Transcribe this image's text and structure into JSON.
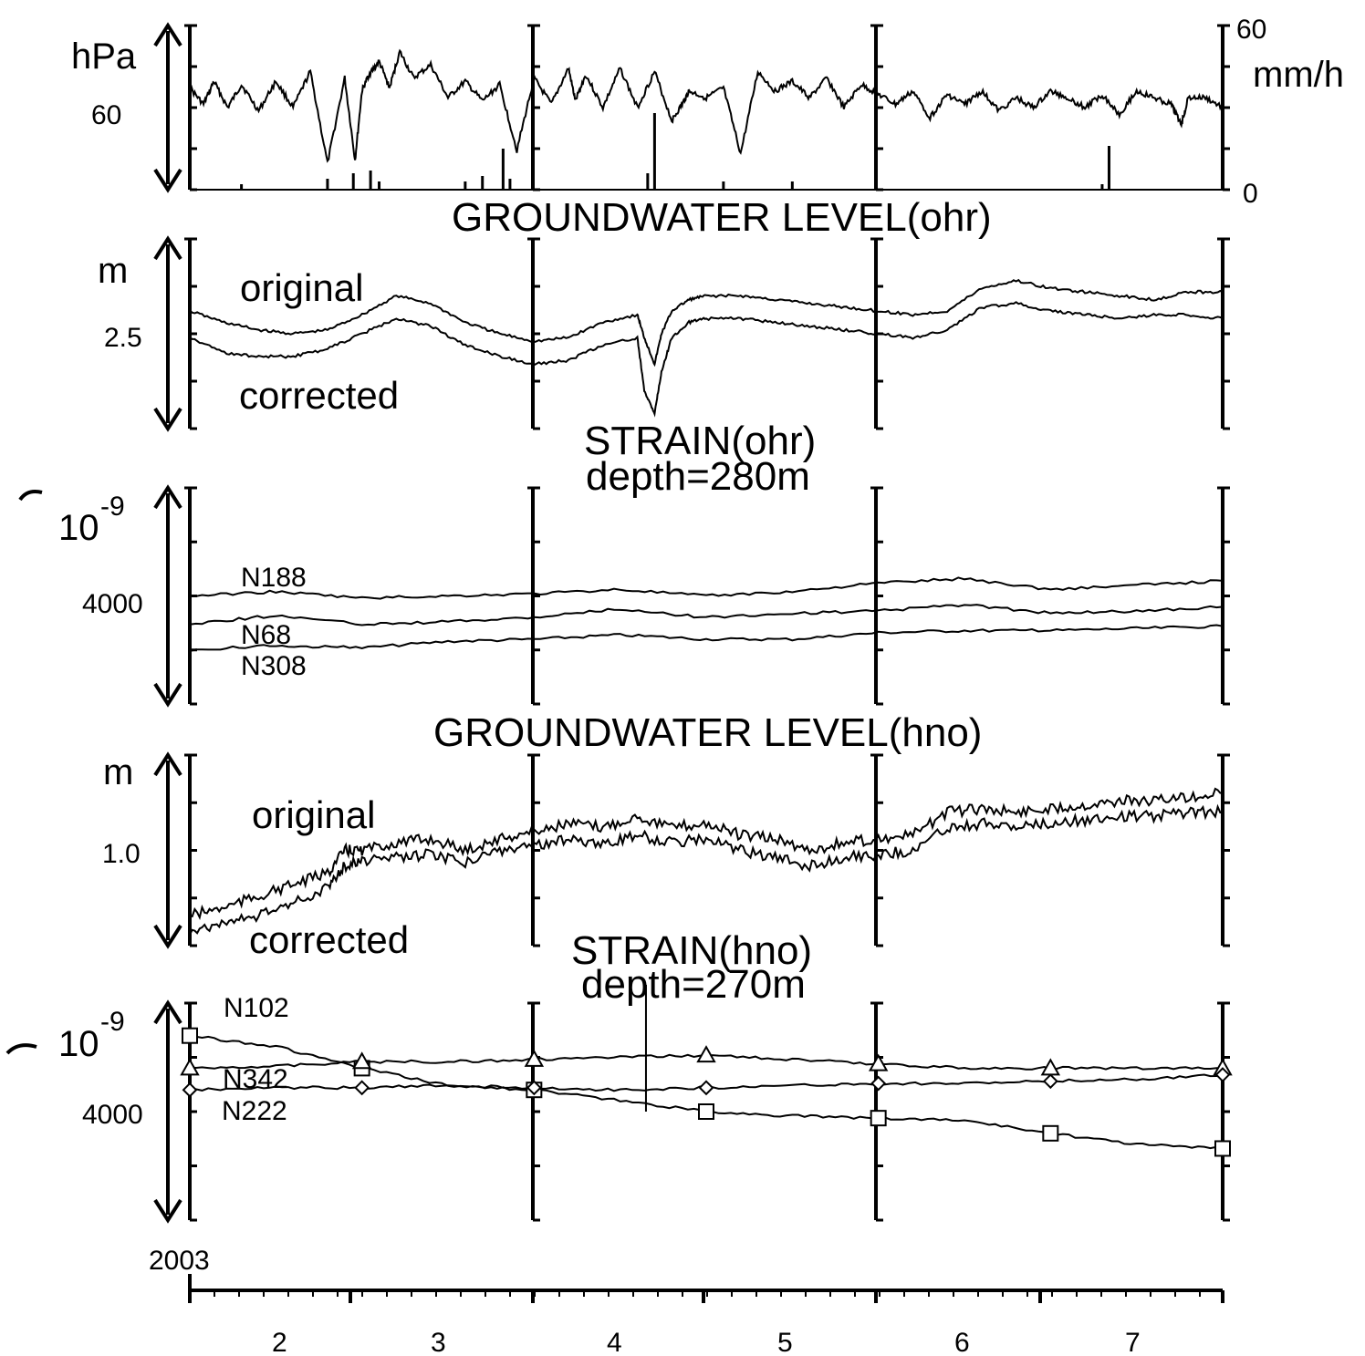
{
  "figure": {
    "year_label": "2003",
    "month_labels": [
      "2",
      "3",
      "4",
      "5",
      "6",
      "7"
    ]
  },
  "chart_data": [
    {
      "type": "line",
      "panel": "pressure-rain",
      "title": "",
      "left_unit": "hPa",
      "left_scale_value": "60",
      "right_unit": "mm/h",
      "right_ticks": [
        "60",
        "0"
      ],
      "x_range": [
        1.0,
        7.0
      ],
      "right_ylim": [
        0,
        60
      ],
      "series": [
        {
          "name": "",
          "kind": "pressure",
          "x": [
            1.0,
            1.08,
            1.14,
            1.22,
            1.3,
            1.4,
            1.5,
            1.6,
            1.7,
            1.8,
            1.9,
            1.96,
            2.0,
            2.04,
            2.1,
            2.16,
            2.22,
            2.3,
            2.4,
            2.5,
            2.6,
            2.7,
            2.8,
            2.9,
            3.0,
            3.1,
            3.2,
            3.24,
            3.3,
            3.4,
            3.5,
            3.6,
            3.7,
            3.8,
            3.86,
            3.9,
            4.0,
            4.1,
            4.2,
            4.3,
            4.4,
            4.5,
            4.6,
            4.7,
            4.8,
            4.9,
            5.0,
            5.1,
            5.2,
            5.3,
            5.4,
            5.5,
            5.6,
            5.7,
            5.8,
            5.9,
            6.0,
            6.1,
            6.2,
            6.3,
            6.4,
            6.5,
            6.6,
            6.7,
            6.76,
            6.8,
            6.9,
            7.0
          ],
          "y": [
            0.62,
            0.52,
            0.66,
            0.5,
            0.64,
            0.48,
            0.66,
            0.5,
            0.72,
            0.16,
            0.68,
            0.18,
            0.6,
            0.7,
            0.78,
            0.62,
            0.84,
            0.68,
            0.76,
            0.56,
            0.66,
            0.54,
            0.64,
            0.24,
            0.68,
            0.52,
            0.74,
            0.54,
            0.7,
            0.5,
            0.74,
            0.5,
            0.72,
            0.42,
            0.52,
            0.6,
            0.56,
            0.62,
            0.22,
            0.72,
            0.6,
            0.66,
            0.56,
            0.68,
            0.5,
            0.64,
            0.58,
            0.52,
            0.6,
            0.44,
            0.58,
            0.52,
            0.6,
            0.48,
            0.56,
            0.5,
            0.6,
            0.56,
            0.5,
            0.58,
            0.46,
            0.6,
            0.56,
            0.52,
            0.4,
            0.56,
            0.56,
            0.5
          ]
        },
        {
          "name": "",
          "kind": "rainfall",
          "x": [
            1.3,
            1.8,
            1.95,
            2.05,
            2.1,
            2.6,
            2.7,
            2.82,
            2.86,
            3.66,
            3.7,
            4.1,
            4.5,
            6.3,
            6.34
          ],
          "y": [
            2,
            4,
            6,
            7,
            3,
            3,
            5,
            15,
            4,
            6,
            28,
            3,
            3,
            2,
            16
          ]
        }
      ]
    },
    {
      "type": "line",
      "panel": "groundwater-ohr",
      "title": "GROUNDWATER LEVEL(ohr)",
      "unit": "m",
      "scale_value": "2.5",
      "x_range": [
        1.0,
        7.0
      ],
      "series": [
        {
          "name": "original",
          "x": [
            1.0,
            1.2,
            1.4,
            1.6,
            1.8,
            2.0,
            2.2,
            2.4,
            2.6,
            2.8,
            3.0,
            3.2,
            3.4,
            3.6,
            3.64,
            3.7,
            3.74,
            3.8,
            3.9,
            4.0,
            4.2,
            4.4,
            4.6,
            4.8,
            5.0,
            5.2,
            5.4,
            5.6,
            5.8,
            6.0,
            6.2,
            6.4,
            6.6,
            6.8,
            7.0
          ],
          "y": [
            0.62,
            0.56,
            0.52,
            0.5,
            0.52,
            0.6,
            0.7,
            0.66,
            0.56,
            0.5,
            0.46,
            0.48,
            0.56,
            0.6,
            0.48,
            0.34,
            0.5,
            0.62,
            0.68,
            0.7,
            0.7,
            0.68,
            0.66,
            0.64,
            0.62,
            0.6,
            0.62,
            0.74,
            0.78,
            0.74,
            0.72,
            0.7,
            0.68,
            0.72,
            0.72
          ]
        },
        {
          "name": "corrected",
          "x": [
            1.0,
            1.2,
            1.4,
            1.6,
            1.8,
            2.0,
            2.2,
            2.4,
            2.6,
            2.8,
            3.0,
            3.2,
            3.4,
            3.6,
            3.64,
            3.7,
            3.74,
            3.8,
            3.9,
            4.0,
            4.2,
            4.4,
            4.6,
            4.8,
            5.0,
            5.2,
            5.4,
            5.6,
            5.8,
            6.0,
            6.2,
            6.4,
            6.6,
            6.8,
            7.0
          ],
          "y": [
            0.48,
            0.4,
            0.38,
            0.38,
            0.42,
            0.5,
            0.58,
            0.54,
            0.44,
            0.38,
            0.34,
            0.36,
            0.44,
            0.48,
            0.2,
            0.08,
            0.3,
            0.48,
            0.56,
            0.58,
            0.58,
            0.56,
            0.54,
            0.52,
            0.5,
            0.48,
            0.52,
            0.64,
            0.66,
            0.62,
            0.6,
            0.58,
            0.6,
            0.6,
            0.58
          ]
        }
      ]
    },
    {
      "type": "line",
      "panel": "strain-ohr",
      "title": "STRAIN(ohr)",
      "subtitle": "depth=280m",
      "unit_base": "10",
      "unit_exp": "-9",
      "scale_value": "4000",
      "x_range": [
        1.0,
        7.0
      ],
      "series": [
        {
          "name": "N188",
          "x": [
            1.0,
            1.5,
            2.0,
            2.5,
            3.0,
            3.5,
            4.0,
            4.5,
            5.0,
            5.5,
            6.0,
            6.5,
            7.0
          ],
          "y": [
            0.5,
            0.52,
            0.49,
            0.5,
            0.51,
            0.53,
            0.5,
            0.52,
            0.56,
            0.58,
            0.53,
            0.55,
            0.57
          ]
        },
        {
          "name": "N68",
          "x": [
            1.0,
            1.5,
            2.0,
            2.5,
            3.0,
            3.5,
            4.0,
            4.5,
            5.0,
            5.5,
            6.0,
            6.5,
            7.0
          ],
          "y": [
            0.37,
            0.41,
            0.37,
            0.38,
            0.4,
            0.44,
            0.4,
            0.42,
            0.43,
            0.46,
            0.42,
            0.43,
            0.45
          ]
        },
        {
          "name": "N308",
          "x": [
            1.0,
            1.5,
            2.0,
            2.5,
            3.0,
            3.5,
            4.0,
            4.5,
            5.0,
            5.5,
            6.0,
            6.5,
            7.0
          ],
          "y": [
            0.25,
            0.27,
            0.26,
            0.29,
            0.3,
            0.32,
            0.3,
            0.3,
            0.33,
            0.34,
            0.34,
            0.35,
            0.36
          ]
        }
      ]
    },
    {
      "type": "line",
      "panel": "groundwater-hno",
      "title": "GROUNDWATER LEVEL(hno)",
      "unit": "m",
      "scale_value": "1.0",
      "x_range": [
        1.0,
        7.0
      ],
      "series": [
        {
          "name": "original",
          "x": [
            1.0,
            1.2,
            1.4,
            1.6,
            1.8,
            1.9,
            2.0,
            2.2,
            2.4,
            2.6,
            2.8,
            3.0,
            3.2,
            3.4,
            3.6,
            3.8,
            4.0,
            4.2,
            4.4,
            4.6,
            4.8,
            5.0,
            5.2,
            5.4,
            5.6,
            5.8,
            6.0,
            6.2,
            6.4,
            6.6,
            6.8,
            7.0
          ],
          "y": [
            0.16,
            0.2,
            0.26,
            0.32,
            0.38,
            0.5,
            0.5,
            0.54,
            0.56,
            0.5,
            0.56,
            0.6,
            0.64,
            0.62,
            0.68,
            0.62,
            0.64,
            0.58,
            0.56,
            0.5,
            0.54,
            0.56,
            0.58,
            0.7,
            0.72,
            0.7,
            0.72,
            0.74,
            0.76,
            0.76,
            0.78,
            0.8
          ]
        },
        {
          "name": "corrected",
          "x": [
            1.0,
            1.2,
            1.4,
            1.6,
            1.8,
            1.9,
            2.0,
            2.2,
            2.4,
            2.6,
            2.8,
            3.0,
            3.2,
            3.4,
            3.6,
            3.8,
            4.0,
            4.2,
            4.4,
            4.6,
            4.8,
            5.0,
            5.2,
            5.4,
            5.6,
            5.8,
            6.0,
            6.2,
            6.4,
            6.6,
            6.8,
            7.0
          ],
          "y": [
            0.08,
            0.12,
            0.16,
            0.22,
            0.3,
            0.42,
            0.44,
            0.46,
            0.48,
            0.44,
            0.5,
            0.52,
            0.56,
            0.54,
            0.58,
            0.54,
            0.56,
            0.5,
            0.46,
            0.42,
            0.46,
            0.48,
            0.5,
            0.62,
            0.64,
            0.62,
            0.64,
            0.66,
            0.68,
            0.68,
            0.7,
            0.7
          ]
        }
      ]
    },
    {
      "type": "line",
      "panel": "strain-hno",
      "title": "STRAIN(hno)",
      "subtitle": "depth=270m",
      "unit_base": "10",
      "unit_exp": "-9",
      "scale_value": "4000",
      "x_range": [
        1.0,
        7.0
      ],
      "series": [
        {
          "name": "N102",
          "marker": "square",
          "x": [
            1.0,
            1.5,
            2.0,
            2.5,
            3.0,
            3.5,
            4.0,
            4.5,
            5.0,
            5.5,
            6.0,
            6.5,
            7.0
          ],
          "y": [
            0.85,
            0.8,
            0.7,
            0.62,
            0.6,
            0.55,
            0.5,
            0.48,
            0.47,
            0.46,
            0.4,
            0.35,
            0.33
          ]
        },
        {
          "name": "N342",
          "marker": "triangle",
          "x": [
            1.0,
            1.5,
            2.0,
            2.5,
            3.0,
            3.5,
            4.0,
            4.5,
            5.0,
            5.5,
            6.0,
            6.5,
            7.0
          ],
          "y": [
            0.7,
            0.71,
            0.73,
            0.73,
            0.74,
            0.75,
            0.76,
            0.74,
            0.72,
            0.7,
            0.7,
            0.7,
            0.7
          ]
        },
        {
          "name": "N222",
          "marker": "diamond",
          "x": [
            1.0,
            1.5,
            2.0,
            2.5,
            3.0,
            3.5,
            4.0,
            4.5,
            5.0,
            5.5,
            6.0,
            6.5,
            7.0
          ],
          "y": [
            0.6,
            0.61,
            0.61,
            0.62,
            0.61,
            0.6,
            0.61,
            0.62,
            0.63,
            0.63,
            0.64,
            0.65,
            0.67
          ]
        }
      ]
    }
  ]
}
